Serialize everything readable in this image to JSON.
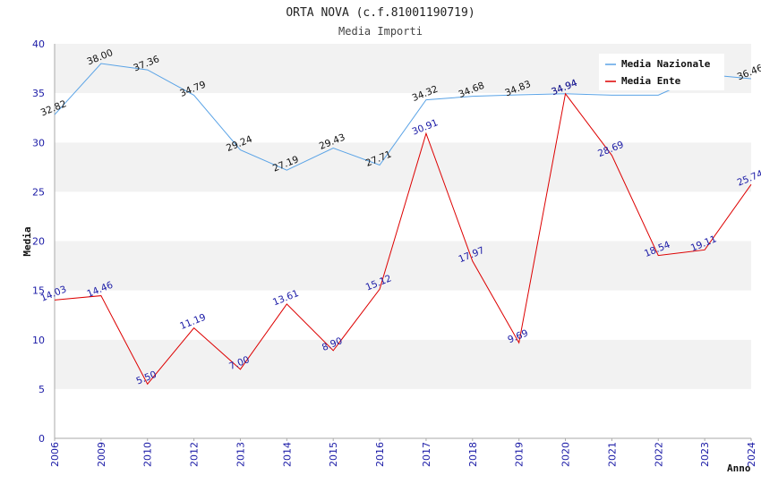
{
  "colors": {
    "nazionale": "#5aa3e6",
    "ente": "#dd0000",
    "band": "#f2f2f2",
    "axis": "#aaaaaa"
  },
  "chart_data": {
    "type": "line",
    "title": "ORTA NOVA (c.f.81001190719)",
    "subtitle": "Media Importi",
    "xlabel": "Anno",
    "ylabel": "Media",
    "ylim": [
      0,
      40
    ],
    "yticks": [
      "0",
      "5",
      "10",
      "15",
      "20",
      "25",
      "30",
      "35",
      "40"
    ],
    "categories": [
      "2006",
      "2009",
      "2010",
      "2012",
      "2013",
      "2014",
      "2015",
      "2016",
      "2017",
      "2018",
      "2019",
      "2020",
      "2021",
      "2022",
      "2023",
      "2024"
    ],
    "legend_position": "top-right",
    "series": [
      {
        "name": "Media Nazionale",
        "values": [
          32.82,
          38.0,
          37.36,
          34.79,
          29.24,
          27.19,
          29.43,
          27.71,
          34.32,
          34.68,
          34.83,
          34.94,
          34.8,
          34.8,
          36.9,
          36.46
        ],
        "labels": [
          "32.82",
          "38.00",
          "37.36",
          "34.79",
          "29.24",
          "27.19",
          "29.43",
          "27.71",
          "34.32",
          "34.68",
          "34.83",
          "34.94",
          "",
          "",
          "",
          "36.46"
        ]
      },
      {
        "name": "Media Ente",
        "values": [
          14.03,
          14.46,
          5.5,
          11.19,
          7.0,
          13.61,
          8.9,
          15.12,
          30.91,
          17.97,
          9.69,
          34.94,
          28.69,
          18.54,
          19.11,
          25.74
        ],
        "labels": [
          "14.03",
          "14.46",
          "5.50",
          "11.19",
          "7.00",
          "13.61",
          "8.90",
          "15.12",
          "30.91",
          "17.97",
          "9.69",
          "34.94",
          "28.69",
          "18.54",
          "19.11",
          "25.74"
        ]
      }
    ]
  }
}
